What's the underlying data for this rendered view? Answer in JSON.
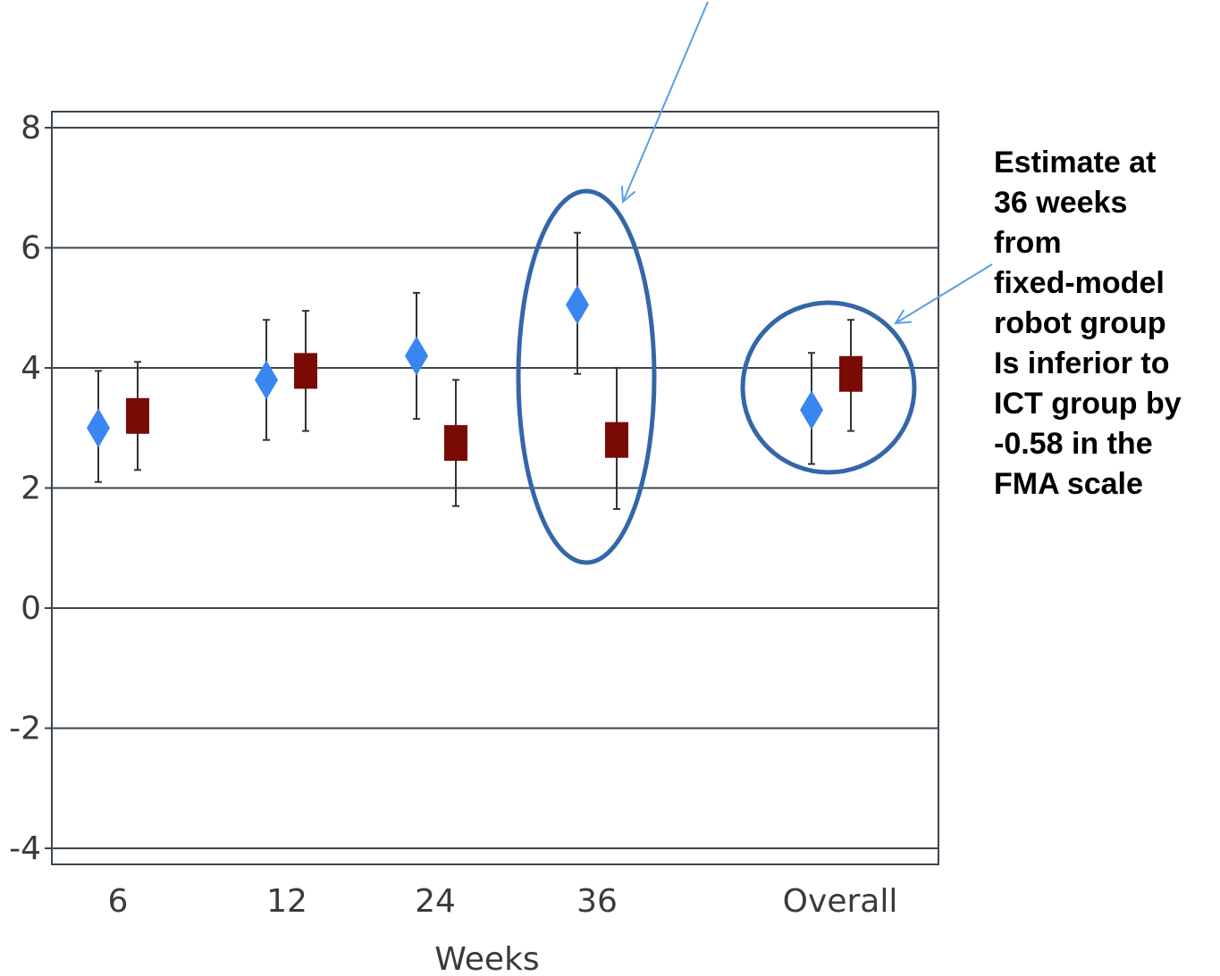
{
  "chart_data": {
    "type": "scatter",
    "title": "",
    "xlabel": "Weeks",
    "ylabel": "",
    "ylim": [
      -4,
      8
    ],
    "yticks": [
      8,
      6,
      4,
      2,
      0,
      -2,
      -4
    ],
    "categories": [
      "6",
      "12",
      "24",
      "36",
      "Overall"
    ],
    "grid": true,
    "series": [
      {
        "marker": "diamond",
        "color": "#3a86f0",
        "points": [
          {
            "category": "6",
            "value": 3.0,
            "lower": 2.1,
            "upper": 3.95
          },
          {
            "category": "12",
            "value": 3.8,
            "lower": 2.8,
            "upper": 4.8
          },
          {
            "category": "24",
            "value": 4.2,
            "lower": 3.15,
            "upper": 5.25
          },
          {
            "category": "36",
            "value": 5.05,
            "lower": 3.9,
            "upper": 6.25
          },
          {
            "category": "Overall",
            "value": 3.3,
            "lower": 2.4,
            "upper": 4.25
          }
        ]
      },
      {
        "marker": "square",
        "color": "#7a0a04",
        "points": [
          {
            "category": "6",
            "value": 3.2,
            "lower": 2.3,
            "upper": 4.1
          },
          {
            "category": "12",
            "value": 3.95,
            "lower": 2.95,
            "upper": 4.95
          },
          {
            "category": "24",
            "value": 2.75,
            "lower": 1.7,
            "upper": 3.8
          },
          {
            "category": "36",
            "value": 2.8,
            "lower": 1.65,
            "upper": 4.0
          },
          {
            "category": "Overall",
            "value": 3.9,
            "lower": 2.95,
            "upper": 4.8
          }
        ]
      }
    ],
    "highlights": [
      {
        "shape": "ellipse",
        "category": "36"
      },
      {
        "shape": "circle",
        "category": "Overall"
      }
    ],
    "annotation": {
      "lines": [
        "Estimate at",
        "36 weeks",
        "from",
        "fixed-model",
        "robot group",
        "Is inferior to",
        "ICT group by",
        "-0.58 in the",
        "FMA scale"
      ]
    },
    "colors": {
      "highlight": "#3466a8",
      "arrow": "#5a9ee6",
      "grid": "#3b4650"
    }
  }
}
